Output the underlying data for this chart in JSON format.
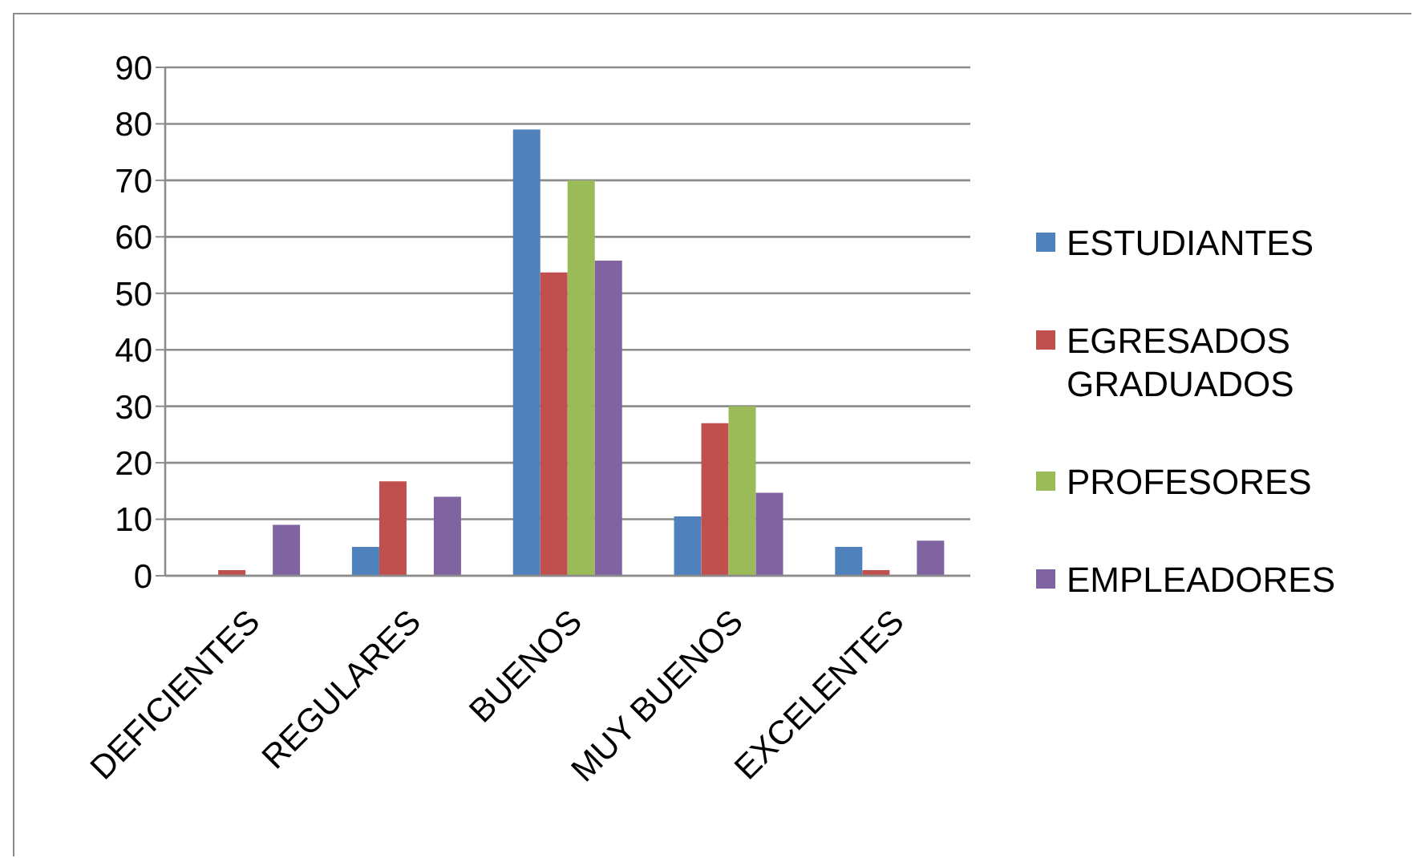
{
  "chart_data": {
    "type": "bar",
    "categories": [
      "DEFICIENTES",
      "REGULARES",
      "BUENOS",
      "MUY BUENOS",
      "EXCELENTES"
    ],
    "series": [
      {
        "name": "ESTUDIANTES",
        "color": "#4f81bd",
        "values": [
          0,
          5.1,
          79,
          10.5,
          5.1
        ]
      },
      {
        "name": "EGRESADOS GRADUADOS",
        "color": "#c0504d",
        "values": [
          1,
          16.7,
          53.7,
          27,
          1
        ]
      },
      {
        "name": "PROFESORES",
        "color": "#9bbb59",
        "values": [
          0,
          0,
          70,
          30,
          0
        ]
      },
      {
        "name": "EMPLEADORES",
        "color": "#8064a2",
        "values": [
          9,
          14,
          55.8,
          14.7,
          6.2
        ]
      }
    ],
    "ylim": [
      0,
      90
    ],
    "yticks": [
      0,
      10,
      20,
      30,
      40,
      50,
      60,
      70,
      80,
      90
    ],
    "grid": "y",
    "legend": "right"
  }
}
